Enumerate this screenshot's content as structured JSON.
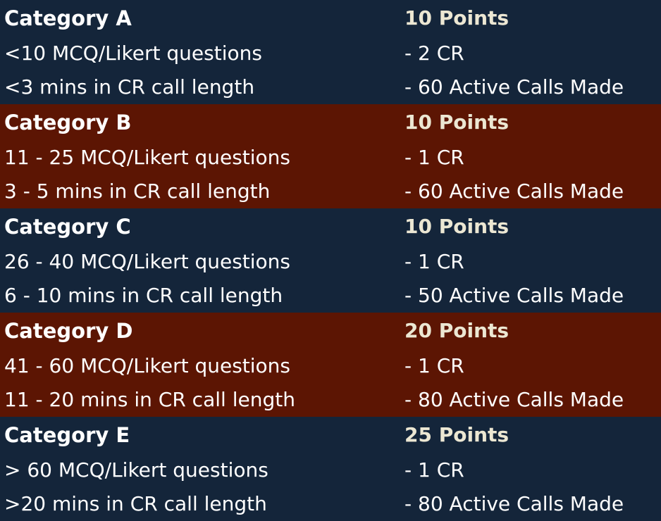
{
  "categories": [
    {
      "title": "Category A",
      "points": "10 Points",
      "line1_left": "<10 MCQ/Likert questions",
      "line1_right": "- 2 CR",
      "line2_left": "<3 mins in CR call length",
      "line2_right": "- 60 Active Calls Made",
      "background": "#14253a"
    },
    {
      "title": "Category B",
      "points": "10 Points",
      "line1_left": "11 - 25 MCQ/Likert questions",
      "line1_right": "- 1 CR",
      "line2_left": "3 - 5 mins in CR call length",
      "line2_right": "- 60 Active Calls Made",
      "background": "#5c1503"
    },
    {
      "title": "Category C",
      "points": "10 Points",
      "line1_left": "26 - 40 MCQ/Likert questions",
      "line1_right": "- 1 CR",
      "line2_left": "6 - 10 mins in CR call length",
      "line2_right": "- 50 Active Calls Made",
      "background": "#14253a"
    },
    {
      "title": "Category D",
      "points": "20 Points",
      "line1_left": "41 - 60 MCQ/Likert questions",
      "line1_right": "- 1 CR",
      "line2_left": "11 - 20 mins in CR call length",
      "line2_right": "- 80 Active Calls Made",
      "background": "#5c1503"
    },
    {
      "title": "Category E",
      "points": "25 Points",
      "line1_left": "> 60 MCQ/Likert questions",
      "line1_right": "- 1 CR",
      "line2_left": ">20 mins in CR call length",
      "line2_right": "- 80 Active Calls Made",
      "background": "#14253a"
    }
  ],
  "colors": {
    "dark_background": "#14253a",
    "red_background": "#5c1503",
    "text": "#ffffff",
    "points_text": "#ece7d3"
  }
}
